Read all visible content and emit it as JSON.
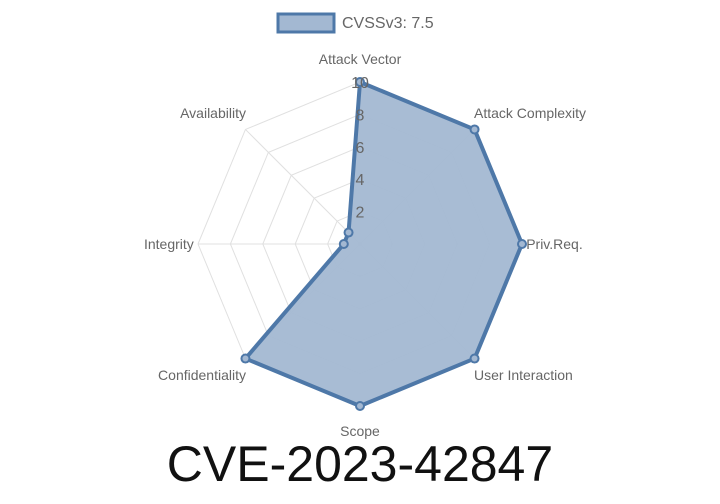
{
  "chart_data": {
    "type": "radar",
    "title": "CVE-2023-42847",
    "axes": [
      "Attack Vector",
      "Attack Complexity",
      "Priv.Req.",
      "User Interaction",
      "Scope",
      "Confidentiality",
      "Integrity",
      "Availability"
    ],
    "series": [
      {
        "name": "CVSSv3: 7.5",
        "values": [
          10,
          10,
          10,
          10,
          10,
          10,
          1,
          1
        ]
      }
    ],
    "rlim": [
      0,
      10
    ],
    "ticks": [
      "2",
      "4",
      "6",
      "8",
      "10"
    ],
    "tick_values": [
      2,
      4,
      6,
      8,
      10
    ],
    "grid": true,
    "legend": "top",
    "colors": {
      "line": "#4e78a8",
      "fill": "#a3b8d2",
      "grid": "#e0e0e0"
    }
  }
}
